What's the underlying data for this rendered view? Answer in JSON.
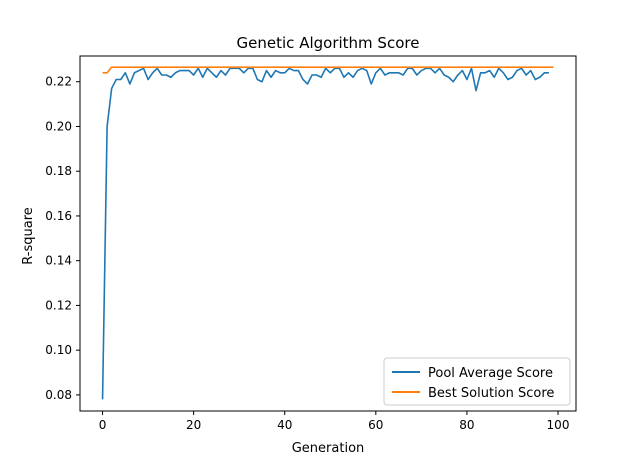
{
  "chart_data": {
    "type": "line",
    "title": "Genetic Algorithm Score",
    "xlabel": "Generation",
    "ylabel": "R-square",
    "xlim": [
      -4.95,
      103.95
    ],
    "ylim": [
      0.0728,
      0.2315
    ],
    "x_ticks": [
      0,
      20,
      40,
      60,
      80,
      100
    ],
    "y_ticks": [
      0.08,
      0.1,
      0.12,
      0.14,
      0.16,
      0.18,
      0.2,
      0.22
    ],
    "grid": false,
    "legend_position": "lower right",
    "series": [
      {
        "name": "Pool Average Score",
        "color": "#1f77b4",
        "x": [
          0,
          1,
          2,
          3,
          4,
          5,
          6,
          7,
          8,
          9,
          10,
          11,
          12,
          13,
          14,
          15,
          16,
          17,
          18,
          19,
          20,
          21,
          22,
          23,
          24,
          25,
          26,
          27,
          28,
          29,
          30,
          31,
          32,
          33,
          34,
          35,
          36,
          37,
          38,
          39,
          40,
          41,
          42,
          43,
          44,
          45,
          46,
          47,
          48,
          49,
          50,
          51,
          52,
          53,
          54,
          55,
          56,
          57,
          58,
          59,
          60,
          61,
          62,
          63,
          64,
          65,
          66,
          67,
          68,
          69,
          70,
          71,
          72,
          73,
          74,
          75,
          76,
          77,
          78,
          79,
          80,
          81,
          82,
          83,
          84,
          85,
          86,
          87,
          88,
          89,
          90,
          91,
          92,
          93,
          94,
          95,
          96,
          97,
          98,
          99
        ],
        "values": [
          0.078,
          0.2,
          0.217,
          0.221,
          0.221,
          0.224,
          0.219,
          0.224,
          0.225,
          0.226,
          0.221,
          0.224,
          0.226,
          0.223,
          0.223,
          0.222,
          0.224,
          0.225,
          0.225,
          0.225,
          0.223,
          0.226,
          0.222,
          0.226,
          0.224,
          0.222,
          0.225,
          0.223,
          0.226,
          0.226,
          0.226,
          0.224,
          0.226,
          0.226,
          0.221,
          0.22,
          0.225,
          0.222,
          0.225,
          0.224,
          0.224,
          0.226,
          0.225,
          0.225,
          0.221,
          0.219,
          0.223,
          0.223,
          0.222,
          0.226,
          0.224,
          0.226,
          0.226,
          0.222,
          0.224,
          0.222,
          0.225,
          0.226,
          0.225,
          0.219,
          0.224,
          0.226,
          0.223,
          0.224,
          0.224,
          0.224,
          0.223,
          0.226,
          0.226,
          0.223,
          0.225,
          0.226,
          0.226,
          0.224,
          0.226,
          0.223,
          0.222,
          0.22,
          0.223,
          0.225,
          0.221,
          0.226,
          0.216,
          0.224,
          0.224,
          0.225,
          0.222,
          0.226,
          0.224,
          0.221,
          0.222,
          0.225,
          0.226,
          0.223,
          0.225,
          0.221,
          0.222,
          0.224,
          0.224,
          null
        ]
      },
      {
        "name": "Best Solution Score",
        "color": "#ff7f0e",
        "x": [
          0,
          1,
          2,
          3,
          4,
          5,
          6,
          7,
          8,
          9,
          10,
          11,
          12,
          13,
          14,
          15,
          16,
          17,
          18,
          19,
          20,
          21,
          22,
          23,
          24,
          25,
          26,
          27,
          28,
          29,
          30,
          31,
          32,
          33,
          34,
          35,
          36,
          37,
          38,
          39,
          40,
          41,
          42,
          43,
          44,
          45,
          46,
          47,
          48,
          49,
          50,
          51,
          52,
          53,
          54,
          55,
          56,
          57,
          58,
          59,
          60,
          61,
          62,
          63,
          64,
          65,
          66,
          67,
          68,
          69,
          70,
          71,
          72,
          73,
          74,
          75,
          76,
          77,
          78,
          79,
          80,
          81,
          82,
          83,
          84,
          85,
          86,
          87,
          88,
          89,
          90,
          91,
          92,
          93,
          94,
          95,
          96,
          97,
          98,
          99
        ],
        "values": [
          0.224,
          0.224,
          0.2265,
          0.2265,
          0.2265,
          0.2265,
          0.2265,
          0.2265,
          0.2265,
          0.2265,
          0.2265,
          0.2265,
          0.2265,
          0.2265,
          0.2265,
          0.2265,
          0.2265,
          0.2265,
          0.2265,
          0.2265,
          0.2265,
          0.2265,
          0.2265,
          0.2265,
          0.2265,
          0.2265,
          0.2265,
          0.2265,
          0.2265,
          0.2265,
          0.2265,
          0.2265,
          0.2265,
          0.2265,
          0.2265,
          0.2265,
          0.2265,
          0.2265,
          0.2265,
          0.2265,
          0.2265,
          0.2265,
          0.2265,
          0.2265,
          0.2265,
          0.2265,
          0.2265,
          0.2265,
          0.2265,
          0.2265,
          0.2265,
          0.2265,
          0.2265,
          0.2265,
          0.2265,
          0.2265,
          0.2265,
          0.2265,
          0.2265,
          0.2265,
          0.2265,
          0.2265,
          0.2265,
          0.2265,
          0.2265,
          0.2265,
          0.2265,
          0.2265,
          0.2265,
          0.2265,
          0.2265,
          0.2265,
          0.2265,
          0.2265,
          0.2265,
          0.2265,
          0.2265,
          0.2265,
          0.2265,
          0.2265,
          0.2265,
          0.2265,
          0.2265,
          0.2265,
          0.2265,
          0.2265,
          0.2265,
          0.2265,
          0.2265,
          0.2265,
          0.2265,
          0.2265,
          0.2265,
          0.2265,
          0.2265,
          0.2265,
          0.2265,
          0.2265,
          0.2265,
          0.2265
        ]
      }
    ]
  }
}
